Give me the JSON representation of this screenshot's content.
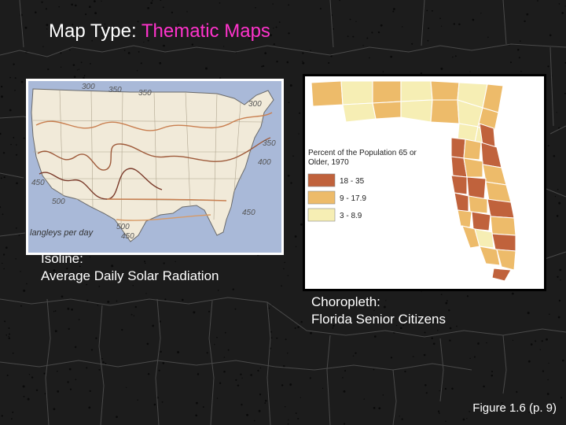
{
  "slide": {
    "title_prefix": "Map Type:",
    "title_accent": "Thematic Maps",
    "accent_color": "#ff33cc",
    "figure_ref": "Figure 1.6 (p. 9)"
  },
  "isoline_map": {
    "caption_line1": "Isoline:",
    "caption_line2": "Average Daily Solar Radiation",
    "unit_label": "langleys per day",
    "contour_labels": [
      "300",
      "350",
      "350",
      "300",
      "350",
      "400",
      "450",
      "500",
      "450",
      "500",
      "450"
    ]
  },
  "choropleth_map": {
    "caption_line1": "Choropleth:",
    "caption_line2": "Florida Senior Citizens",
    "legend_title_line1": "Percent of the Population 65 or",
    "legend_title_line2": "Older, 1970",
    "classes": [
      {
        "label": "18 - 35",
        "color": "#c0623c"
      },
      {
        "label": "9 - 17.9",
        "color": "#edbb6a"
      },
      {
        "label": "3 - 8.9",
        "color": "#f6eeb4"
      }
    ]
  }
}
